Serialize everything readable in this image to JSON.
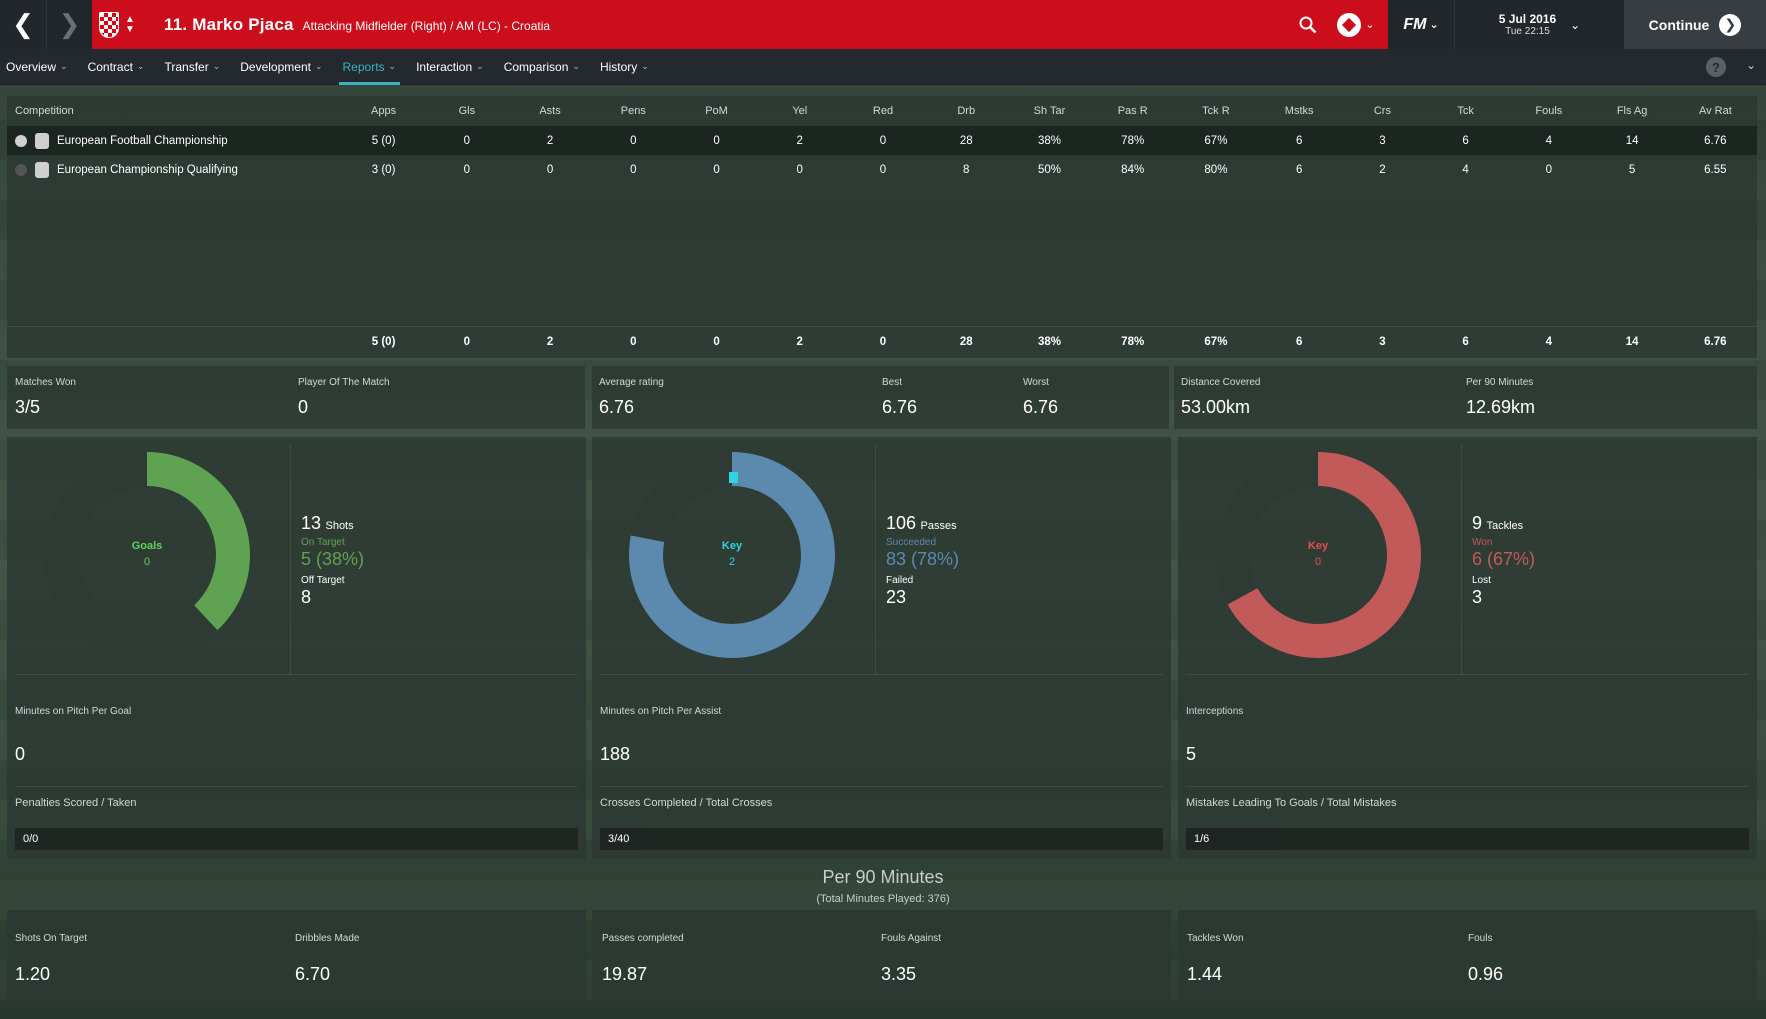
{
  "header": {
    "player_name": "11. Marko Pjaca",
    "player_desc": "Attacking Midfielder (Right) / AM (LC) - Croatia",
    "date": "5 Jul 2016",
    "time": "Tue 22:15",
    "continue_label": "Continue",
    "fm_label": "FM"
  },
  "tabs": [
    {
      "label": "Overview"
    },
    {
      "label": "Contract"
    },
    {
      "label": "Transfer"
    },
    {
      "label": "Development"
    },
    {
      "label": "Reports"
    },
    {
      "label": "Interaction"
    },
    {
      "label": "Comparison"
    },
    {
      "label": "History"
    }
  ],
  "table": {
    "headers": [
      "Competition",
      "Apps",
      "Gls",
      "Asts",
      "Pens",
      "PoM",
      "Yel",
      "Red",
      "Drb",
      "Sh Tar",
      "Pas R",
      "Tck R",
      "Mstks",
      "Crs",
      "Tck",
      "Fouls",
      "Fls Ag",
      "Av Rat"
    ],
    "rows": [
      [
        "European Football Championship",
        "5 (0)",
        "0",
        "2",
        "0",
        "0",
        "2",
        "0",
        "28",
        "38%",
        "78%",
        "67%",
        "6",
        "3",
        "6",
        "4",
        "14",
        "6.76"
      ],
      [
        "European Championship Qualifying",
        "3 (0)",
        "0",
        "0",
        "0",
        "0",
        "0",
        "0",
        "8",
        "50%",
        "84%",
        "80%",
        "6",
        "2",
        "4",
        "0",
        "5",
        "6.55"
      ]
    ],
    "totals": [
      "5 (0)",
      "0",
      "2",
      "0",
      "0",
      "2",
      "0",
      "28",
      "38%",
      "78%",
      "67%",
      "6",
      "3",
      "6",
      "4",
      "14",
      "6.76"
    ]
  },
  "summary": {
    "matches_won_label": "Matches Won",
    "matches_won": "3/5",
    "potm_label": "Player Of The Match",
    "potm": "0",
    "avg_label": "Average rating",
    "avg": "6.76",
    "best_label": "Best",
    "best": "6.76",
    "worst_label": "Worst",
    "worst": "6.76",
    "dist_label": "Distance Covered",
    "dist": "53.00km",
    "per90_label": "Per 90 Minutes",
    "per90": "12.69km"
  },
  "cards": {
    "shooting": {
      "donut_label": "Goals",
      "donut_value": "0",
      "total": "13",
      "total_label": "Shots",
      "sub1_label": "On Target",
      "sub1": "5 (38%)",
      "sub2_label": "Off Target",
      "sub2": "8",
      "fraction": 0.38,
      "stat_label": "Minutes on Pitch Per Goal",
      "stat": "0",
      "bar_label": "Penalties Scored / Taken",
      "bar_value": "0/0",
      "bar_fraction": 0,
      "color": "#5fa252",
      "accent": "#5fd05f"
    },
    "passing": {
      "donut_label": "Key",
      "donut_value": "2",
      "total": "106",
      "total_label": "Passes",
      "sub1_label": "Succeeded",
      "sub1": "83 (78%)",
      "sub2_label": "Failed",
      "sub2": "23",
      "fraction": 0.78,
      "stat_label": "Minutes on Pitch Per Assist",
      "stat": "188",
      "bar_label": "Crosses Completed / Total Crosses",
      "bar_value": "3/40",
      "bar_fraction": 0.075,
      "color": "#5c8aae",
      "accent": "#2fd3e3"
    },
    "defending": {
      "donut_label": "Key",
      "donut_value": "0",
      "total": "9",
      "total_label": "Tackles",
      "sub1_label": "Won",
      "sub1": "6 (67%)",
      "sub2_label": "Lost",
      "sub2": "3",
      "fraction": 0.67,
      "stat_label": "Interceptions",
      "stat": "5",
      "bar_label": "Mistakes Leading To Goals / Total Mistakes",
      "bar_value": "1/6",
      "bar_fraction": 0.167,
      "color": "#c25a5a",
      "accent": "#e84c4c"
    }
  },
  "per90": {
    "title": "Per 90 Minutes",
    "subtitle": "(Total Minutes Played: 376)",
    "items": [
      {
        "label": "Shots On Target",
        "value": "1.20"
      },
      {
        "label": "Dribbles Made",
        "value": "6.70"
      },
      {
        "label": "Passes completed",
        "value": "19.87"
      },
      {
        "label": "Fouls Against",
        "value": "3.35"
      },
      {
        "label": "Tackles Won",
        "value": "1.44"
      },
      {
        "label": "Fouls",
        "value": "0.96"
      }
    ]
  }
}
